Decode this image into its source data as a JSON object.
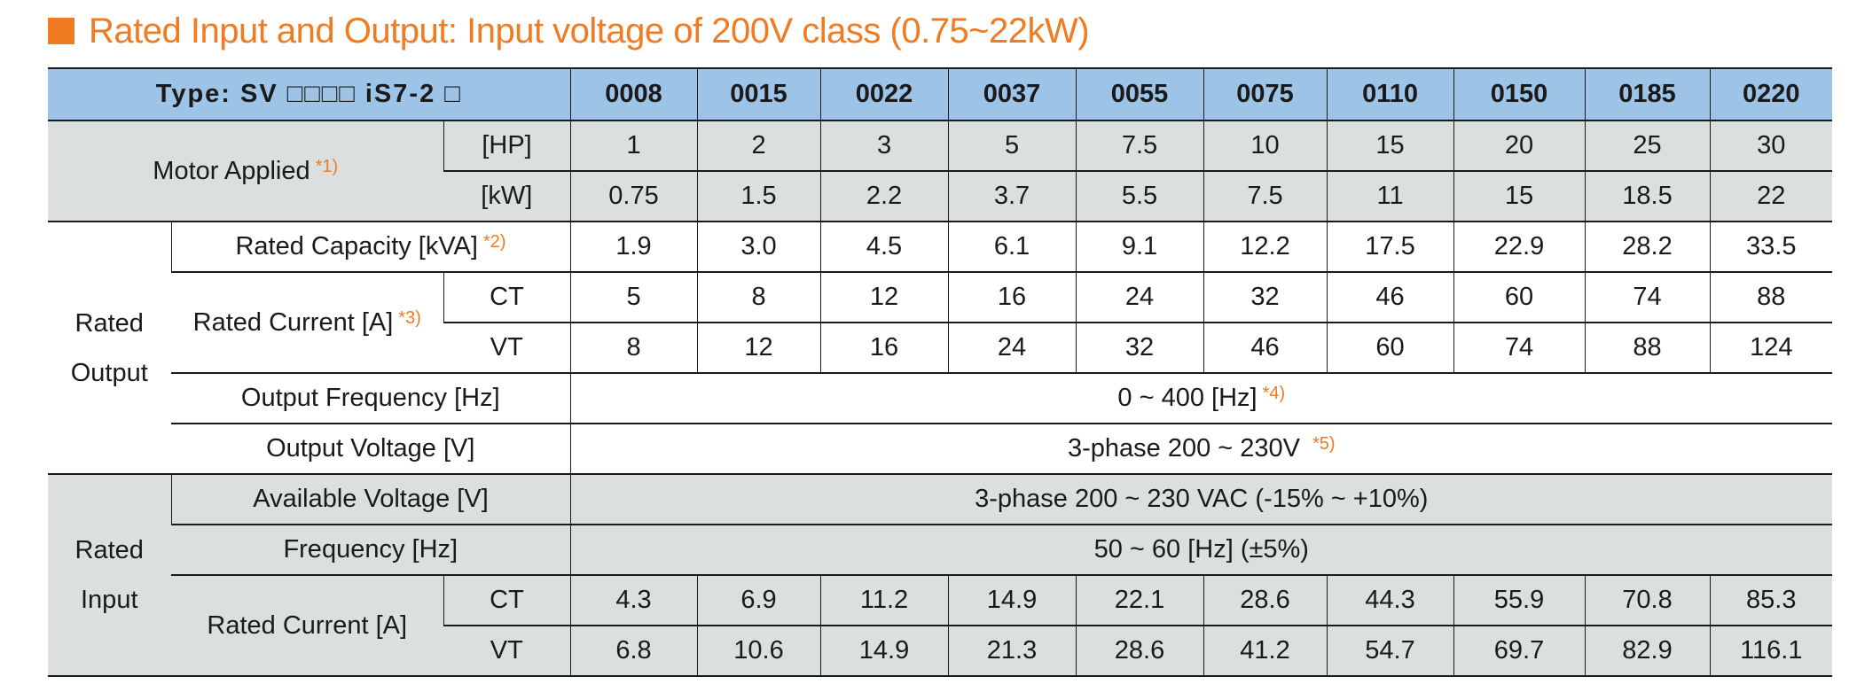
{
  "title": "Rated Input and Output: Input voltage of 200V class (0.75~22kW)",
  "colors": {
    "accent": "#f07b20",
    "header_bg": "#9dc3e6",
    "gray_bg": "#dcdfe0"
  },
  "header": {
    "type_label": "Type: SV □□□□ iS7-2 □",
    "models": [
      "0008",
      "0015",
      "0022",
      "0037",
      "0055",
      "0075",
      "0110",
      "0150",
      "0185",
      "0220"
    ]
  },
  "motor_applied": {
    "label": "Motor Applied",
    "note": "*1)",
    "hp_unit": "[HP]",
    "hp": [
      "1",
      "2",
      "3",
      "5",
      "7.5",
      "10",
      "15",
      "20",
      "25",
      "30"
    ],
    "kw_unit": "[kW]",
    "kw": [
      "0.75",
      "1.5",
      "2.2",
      "3.7",
      "5.5",
      "7.5",
      "11",
      "15",
      "18.5",
      "22"
    ]
  },
  "rated_output": {
    "label_line1": "Rated",
    "label_line2": "Output",
    "capacity_label": "Rated Capacity [kVA]",
    "capacity_note": "*2)",
    "capacity": [
      "1.9",
      "3.0",
      "4.5",
      "6.1",
      "9.1",
      "12.2",
      "17.5",
      "22.9",
      "28.2",
      "33.5"
    ],
    "current_label": "Rated Current [A]",
    "current_note": "*3)",
    "ct_label": "CT",
    "ct": [
      "5",
      "8",
      "12",
      "16",
      "24",
      "32",
      "46",
      "60",
      "74",
      "88"
    ],
    "vt_label": "VT",
    "vt": [
      "8",
      "12",
      "16",
      "24",
      "32",
      "46",
      "60",
      "74",
      "88",
      "124"
    ],
    "freq_label": "Output Frequency [Hz]",
    "freq_value": "0 ~ 400 [Hz]",
    "freq_note": "*4)",
    "voltage_label": "Output Voltage [V]",
    "voltage_value": "3-phase 200 ~ 230V",
    "voltage_note": "*5)"
  },
  "rated_input": {
    "label_line1": "Rated",
    "label_line2": "Input",
    "avail_voltage_label": "Available Voltage [V]",
    "avail_voltage_value": "3-phase 200 ~ 230 VAC (-15% ~ +10%)",
    "freq_label": "Frequency [Hz]",
    "freq_value": "50 ~ 60 [Hz] (±5%)",
    "current_label": "Rated Current [A]",
    "ct_label": "CT",
    "ct": [
      "4.3",
      "6.9",
      "11.2",
      "14.9",
      "22.1",
      "28.6",
      "44.3",
      "55.9",
      "70.8",
      "85.3"
    ],
    "vt_label": "VT",
    "vt": [
      "6.8",
      "10.6",
      "14.9",
      "21.3",
      "28.6",
      "41.2",
      "54.7",
      "69.7",
      "82.9",
      "116.1"
    ]
  }
}
